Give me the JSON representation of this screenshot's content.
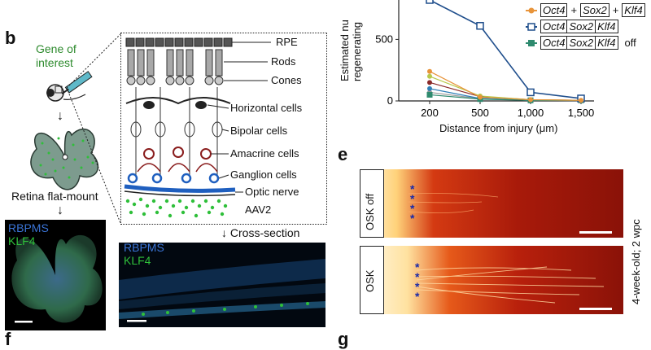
{
  "panels": {
    "b": {
      "letter": "b"
    },
    "e": {
      "letter": "e"
    },
    "f": {
      "letter": "f"
    },
    "g": {
      "letter": "g"
    }
  },
  "panel_b": {
    "gene_of_interest": [
      "Gene of",
      "interest"
    ],
    "flatmount_label": "Retina flat-mount",
    "flatmount_stain": [
      "RBPMS",
      "KLF4"
    ],
    "cross_section_label": "Cross-section",
    "cross_stain": [
      "RBPMS",
      "KLF4"
    ],
    "retina_layers": [
      "RPE",
      "Rods",
      "Cones",
      "Horizontal cells",
      "Bipolar cells",
      "Amacrine cells",
      "Ganglion cells",
      "Optic nerve"
    ],
    "vector_label": "AAV2",
    "colors": {
      "stain_blue": "#3a74d6",
      "stain_green": "#2fbf3a",
      "label_green": "#2e8b2e"
    }
  },
  "panel_e": {
    "rows": [
      {
        "label": "OSK off"
      },
      {
        "label": "OSK"
      }
    ],
    "side_label": "4-week-old; 2 wpc",
    "asterisks": "* * * *"
  },
  "chart_data": {
    "type": "line",
    "ylabel": "Estimated number of regenerating axons",
    "ylabel_visible": [
      "Estimated nu",
      "regenerating"
    ],
    "xlabel": "Distance from injury (μm)",
    "categories": [
      "200",
      "500",
      "1,000",
      "1,500"
    ],
    "x": [
      200,
      500,
      1000,
      1500
    ],
    "ylim": [
      0,
      800
    ],
    "yticks": [
      "0",
      "500"
    ],
    "ytick_values": [
      0,
      500
    ],
    "series": [
      {
        "name": "Oct4+Sox2+Klf4",
        "legend_parts": [
          "Oct4",
          "+",
          "Sox2",
          "+",
          "Klf4"
        ],
        "color": "#e8943a",
        "marker": "circle",
        "values": [
          240,
          30,
          10,
          5
        ]
      },
      {
        "name": "Oct4 Sox2 Klf4",
        "legend_parts": [
          "Oct4",
          "Sox2",
          "Klf4"
        ],
        "color": "#1f4e8c",
        "marker": "open-square",
        "values": [
          820,
          610,
          70,
          20
        ]
      },
      {
        "name": "Oct4 Sox2 Klf4 off",
        "legend_parts": [
          "Oct4",
          "Sox2",
          "Klf4",
          "off"
        ],
        "color": "#2e8a6e",
        "marker": "square",
        "values": [
          50,
          15,
          5,
          5
        ]
      },
      {
        "color": "#b8c84a",
        "marker": "circle",
        "values": [
          200,
          40,
          10,
          5
        ]
      },
      {
        "color": "#8a2a2a",
        "marker": "circle",
        "values": [
          150,
          35,
          10,
          5
        ]
      },
      {
        "color": "#2f7fb7",
        "marker": "circle",
        "values": [
          100,
          20,
          5,
          3
        ]
      },
      {
        "color": "#9a9a9a",
        "marker": "circle",
        "values": [
          70,
          18,
          5,
          3
        ]
      }
    ]
  }
}
